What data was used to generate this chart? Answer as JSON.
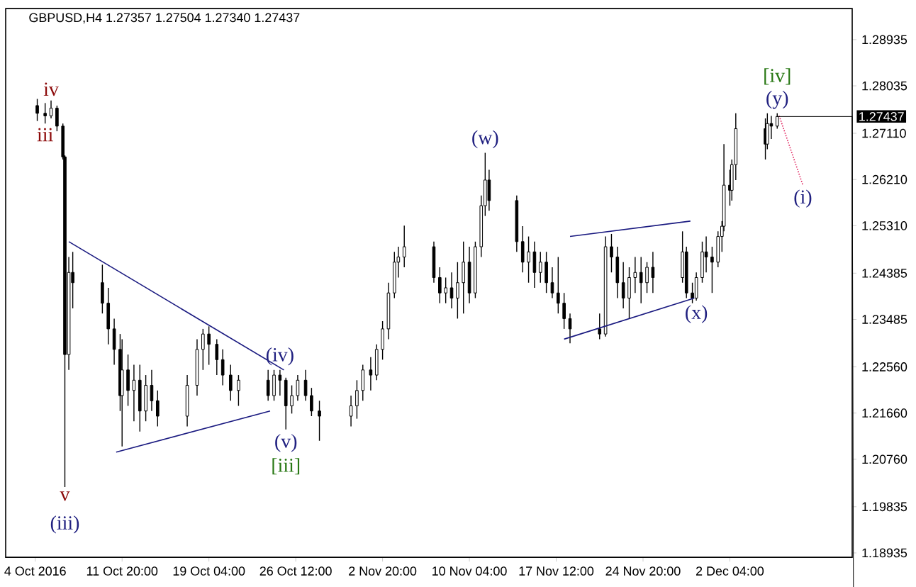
{
  "chart_data": {
    "type": "candlestick",
    "title": "GBPUSD,H4  1.27357 1.27504 1.27340 1.27437",
    "color": "#000000",
    "x": [
      "2016-10-04T16:00",
      "2016-10-05T08:00",
      "2016-10-05T20:00",
      "2016-10-06T08:00",
      "2016-10-06T20:00",
      "2016-10-07T00:00",
      "2016-10-07T08:00",
      "2016-10-07T16:00",
      "2016-10-10T04:00",
      "2016-10-10T16:00",
      "2016-10-11T04:00",
      "2016-10-11T16:00",
      "2016-10-11T20:00",
      "2016-10-12T08:00",
      "2016-10-12T20:00",
      "2016-10-13T08:00",
      "2016-10-13T20:00",
      "2016-10-14T08:00",
      "2016-10-14T20:00",
      "2016-10-17T08:00",
      "2016-10-18T04:00",
      "2016-10-18T16:00",
      "2016-10-19T04:00",
      "2016-10-19T20:00",
      "2016-10-20T08:00",
      "2016-10-21T00:00",
      "2016-10-21T16:00",
      "2016-10-24T04:00",
      "2016-10-24T16:00",
      "2016-10-25T04:00",
      "2016-10-25T16:00",
      "2016-10-26T04:00",
      "2016-10-26T16:00",
      "2016-10-27T08:00",
      "2016-10-27T20:00",
      "2016-10-28T12:00",
      "2016-10-31T04:00",
      "2016-10-31T16:00",
      "2016-11-01T04:00",
      "2016-11-01T20:00",
      "2016-11-02T08:00",
      "2016-11-02T20:00",
      "2016-11-03T08:00",
      "2016-11-03T20:00",
      "2016-11-04T04:00",
      "2016-11-04T16:00",
      "2016-11-07T04:00",
      "2016-11-07T16:00",
      "2016-11-08T04:00",
      "2016-11-08T16:00",
      "2016-11-09T04:00",
      "2016-11-09T16:00",
      "2016-11-10T04:00",
      "2016-11-10T16:00",
      "2016-11-11T04:00",
      "2016-11-11T12:00",
      "2016-11-11T20:00",
      "2016-11-14T04:00",
      "2016-11-14T16:00",
      "2016-11-15T04:00",
      "2016-11-15T16:00",
      "2016-11-16T04:00",
      "2016-11-16T16:00",
      "2016-11-17T04:00",
      "2016-11-17T16:00",
      "2016-11-18T04:00",
      "2016-11-18T16:00",
      "2016-11-21T04:00",
      "2016-11-21T16:00",
      "2016-11-22T04:00",
      "2016-11-22T16:00",
      "2016-11-23T04:00",
      "2016-11-23T16:00",
      "2016-11-24T04:00",
      "2016-11-24T16:00",
      "2016-11-25T04:00",
      "2016-11-25T16:00",
      "2016-11-28T04:00",
      "2016-11-28T12:00",
      "2016-11-29T00:00",
      "2016-11-29T08:00",
      "2016-11-29T20:00",
      "2016-11-30T04:00",
      "2016-11-30T16:00",
      "2016-12-01T04:00",
      "2016-12-01T12:00",
      "2016-12-01T16:00",
      "2016-12-02T04:00",
      "2016-12-02T08:00",
      "2016-12-02T16:00",
      "2016-12-05T04:00",
      "2016-12-05T08:00",
      "2016-12-05T16:00",
      "2016-12-06T04:00"
    ],
    "ohlc": [
      [
        1.2765,
        1.2778,
        1.2735,
        1.275
      ],
      [
        1.275,
        1.277,
        1.273,
        1.2745
      ],
      [
        1.2745,
        1.2775,
        1.274,
        1.276
      ],
      [
        1.276,
        1.2765,
        1.2715,
        1.2725
      ],
      [
        1.2725,
        1.273,
        1.266,
        1.2665
      ],
      [
        1.2665,
        1.2668,
        1.2022,
        1.228
      ],
      [
        1.228,
        1.247,
        1.225,
        1.244
      ],
      [
        1.244,
        1.248,
        1.237,
        1.242
      ],
      [
        1.242,
        1.2455,
        1.236,
        1.238
      ],
      [
        1.238,
        1.241,
        1.23,
        1.233
      ],
      [
        1.233,
        1.235,
        1.226,
        1.229
      ],
      [
        1.229,
        1.232,
        1.217,
        1.22
      ],
      [
        1.22,
        1.231,
        1.2101,
        1.225
      ],
      [
        1.225,
        1.228,
        1.218,
        1.221
      ],
      [
        1.221,
        1.226,
        1.215,
        1.223
      ],
      [
        1.223,
        1.226,
        1.213,
        1.217
      ],
      [
        1.217,
        1.224,
        1.215,
        1.222
      ],
      [
        1.222,
        1.225,
        1.217,
        1.219
      ],
      [
        1.219,
        1.221,
        1.214,
        1.216
      ],
      [
        1.216,
        1.224,
        1.214,
        1.222
      ],
      [
        1.222,
        1.231,
        1.22,
        1.229
      ],
      [
        1.229,
        1.233,
        1.225,
        1.232
      ],
      [
        1.232,
        1.2335,
        1.226,
        1.23
      ],
      [
        1.23,
        1.231,
        1.224,
        1.227
      ],
      [
        1.227,
        1.229,
        1.222,
        1.224
      ],
      [
        1.224,
        1.226,
        1.219,
        1.221
      ],
      [
        1.221,
        1.224,
        1.218,
        1.223
      ],
      [
        1.223,
        1.225,
        1.219,
        1.22
      ],
      [
        1.22,
        1.225,
        1.219,
        1.224
      ],
      [
        1.224,
        1.225,
        1.22,
        1.223
      ],
      [
        1.223,
        1.2235,
        1.2134,
        1.218
      ],
      [
        1.218,
        1.222,
        1.2165,
        1.22
      ],
      [
        1.22,
        1.224,
        1.219,
        1.223
      ],
      [
        1.223,
        1.225,
        1.219,
        1.22
      ],
      [
        1.22,
        1.2215,
        1.216,
        1.217
      ],
      [
        1.217,
        1.219,
        1.2112,
        1.216
      ],
      [
        1.216,
        1.22,
        1.214,
        1.218
      ],
      [
        1.218,
        1.223,
        1.2155,
        1.221
      ],
      [
        1.221,
        1.226,
        1.219,
        1.225
      ],
      [
        1.225,
        1.2275,
        1.221,
        1.224
      ],
      [
        1.224,
        1.23,
        1.223,
        1.229
      ],
      [
        1.229,
        1.2345,
        1.227,
        1.233
      ],
      [
        1.233,
        1.242,
        1.231,
        1.24
      ],
      [
        1.24,
        1.248,
        1.239,
        1.246
      ],
      [
        1.246,
        1.249,
        1.243,
        1.247
      ],
      [
        1.247,
        1.2531,
        1.245,
        1.249
      ],
      [
        1.249,
        1.25,
        1.242,
        1.243
      ],
      [
        1.243,
        1.245,
        1.238,
        1.24
      ],
      [
        1.24,
        1.243,
        1.238,
        1.241
      ],
      [
        1.241,
        1.244,
        1.237,
        1.239
      ],
      [
        1.239,
        1.246,
        1.235,
        1.242
      ],
      [
        1.242,
        1.25,
        1.236,
        1.246
      ],
      [
        1.246,
        1.249,
        1.238,
        1.24
      ],
      [
        1.24,
        1.25,
        1.239,
        1.249
      ],
      [
        1.249,
        1.259,
        1.247,
        1.257
      ],
      [
        1.257,
        1.2673,
        1.255,
        1.262
      ],
      [
        1.262,
        1.264,
        1.256,
        1.258
      ],
      [
        1.258,
        1.259,
        1.248,
        1.25
      ],
      [
        1.25,
        1.253,
        1.244,
        1.246
      ],
      [
        1.246,
        1.251,
        1.242,
        1.248
      ],
      [
        1.248,
        1.25,
        1.241,
        1.244
      ],
      [
        1.244,
        1.248,
        1.242,
        1.246
      ],
      [
        1.246,
        1.248,
        1.24,
        1.242
      ],
      [
        1.242,
        1.245,
        1.239,
        1.24
      ],
      [
        1.24,
        1.247,
        1.236,
        1.238
      ],
      [
        1.238,
        1.24,
        1.233,
        1.235
      ],
      [
        1.235,
        1.236,
        1.2302,
        1.233
      ],
      [
        1.233,
        1.236,
        1.231,
        1.232
      ],
      [
        1.232,
        1.251,
        1.2315,
        1.249
      ],
      [
        1.249,
        1.2515,
        1.244,
        1.247
      ],
      [
        1.247,
        1.249,
        1.239,
        1.242
      ],
      [
        1.242,
        1.246,
        1.237,
        1.239
      ],
      [
        1.239,
        1.245,
        1.235,
        1.243
      ],
      [
        1.243,
        1.247,
        1.24,
        1.244
      ],
      [
        1.244,
        1.247,
        1.238,
        1.242
      ],
      [
        1.242,
        1.246,
        1.24,
        1.245
      ],
      [
        1.245,
        1.248,
        1.24,
        1.243
      ],
      [
        1.243,
        1.252,
        1.242,
        1.248
      ],
      [
        1.248,
        1.249,
        1.239,
        1.24
      ],
      [
        1.24,
        1.242,
        1.238,
        1.239
      ],
      [
        1.239,
        1.244,
        1.2385,
        1.243
      ],
      [
        1.243,
        1.25,
        1.242,
        1.248
      ],
      [
        1.248,
        1.251,
        1.244,
        1.247
      ],
      [
        1.247,
        1.249,
        1.24,
        1.246
      ],
      [
        1.246,
        1.252,
        1.245,
        1.251
      ],
      [
        1.251,
        1.254,
        1.248,
        1.253
      ],
      [
        1.253,
        1.269,
        1.252,
        1.261
      ],
      [
        1.261,
        1.264,
        1.257,
        1.26
      ],
      [
        1.26,
        1.266,
        1.258,
        1.265
      ],
      [
        1.265,
        1.275,
        1.262,
        1.272
      ],
      [
        1.272,
        1.274,
        1.266,
        1.269
      ],
      [
        1.269,
        1.275,
        1.268,
        1.273
      ],
      [
        1.273,
        1.2745,
        1.27,
        1.2725
      ],
      [
        1.2725,
        1.275,
        1.272,
        1.27437
      ]
    ],
    "series": [
      {
        "type": "line",
        "color": "#1a1a80",
        "x": [
          "2016-10-07T08:00",
          "2016-10-25T12:00"
        ],
        "values": [
          1.25,
          1.225
        ]
      },
      {
        "type": "line",
        "color": "#1a1a80",
        "x": [
          "2016-10-11T08:00",
          "2016-10-24T08:00"
        ],
        "values": [
          1.209,
          1.217
        ]
      },
      {
        "type": "line",
        "color": "#1a1a80",
        "x": [
          "2016-11-18T16:00",
          "2016-11-28T20:00"
        ],
        "values": [
          1.251,
          1.254
        ]
      },
      {
        "type": "line",
        "color": "#1a1a80",
        "x": [
          "2016-11-18T04:00",
          "2016-11-29T04:00"
        ],
        "values": [
          1.231,
          1.239
        ]
      },
      {
        "type": "line",
        "color": "#e0245e",
        "line_style": "dotted",
        "x": [
          "2016-12-06T08:00",
          "2016-12-08T08:00"
        ],
        "values": [
          1.2745,
          1.261
        ]
      }
    ],
    "annotations": [
      {
        "text": "iv",
        "x": "2016-10-05T20:00",
        "y": 1.2775
      },
      {
        "text": "iii",
        "x": "2016-10-05T08:00",
        "y": 1.273
      },
      {
        "text": "v",
        "x": "2016-10-07T00:00",
        "y": 1.2022
      },
      {
        "text": "(iii)",
        "x": "2016-10-07T00:00",
        "y": 1.2022
      },
      {
        "text": "(iv)",
        "x": "2016-10-25T04:00",
        "y": 1.225
      },
      {
        "text": "(v)",
        "x": "2016-10-25T16:00",
        "y": 1.2134
      },
      {
        "text": "[iii]",
        "x": "2016-10-25T16:00",
        "y": 1.2134
      },
      {
        "text": "(w)",
        "x": "2016-11-11T12:00",
        "y": 1.2673
      },
      {
        "text": "(x)",
        "x": "2016-11-29T08:00",
        "y": 1.2385
      },
      {
        "text": "(y)",
        "x": "2016-12-06T04:00",
        "y": 1.275
      },
      {
        "text": "[iv]",
        "x": "2016-12-06T04:00",
        "y": 1.275
      },
      {
        "text": "(i)",
        "x": "2016-12-08T08:00",
        "y": 1.261
      }
    ],
    "ref_lines": [
      {
        "axis": "y",
        "value": 1.27437,
        "label": "1.27437"
      }
    ],
    "xlim": [
      "2016-10-02T00:00",
      "2016-12-12T12:00"
    ],
    "ylim": [
      1.1885,
      1.2954
    ],
    "xticks": [
      {
        "value": "2016-10-04T12:00",
        "label": "4 Oct 2016"
      },
      {
        "value": "2016-10-11T20:00",
        "label": "11 Oct 20:00"
      },
      {
        "value": "2016-10-19T04:00",
        "label": "19 Oct 04:00"
      },
      {
        "value": "2016-10-26T12:00",
        "label": "26 Oct 12:00"
      },
      {
        "value": "2016-11-02T20:00",
        "label": "2 Nov 20:00"
      },
      {
        "value": "2016-11-10T04:00",
        "label": "10 Nov 04:00"
      },
      {
        "value": "2016-11-17T12:00",
        "label": "17 Nov 12:00"
      },
      {
        "value": "2016-11-24T20:00",
        "label": "24 Nov 20:00"
      },
      {
        "value": "2016-12-02T04:00",
        "label": "2 Dec 04:00"
      }
    ],
    "yticks": [
      {
        "value": 1.18935,
        "label": "1.18935"
      },
      {
        "value": 1.19835,
        "label": "1.19835"
      },
      {
        "value": 1.2076,
        "label": "1.20760"
      },
      {
        "value": 1.2166,
        "label": "1.21660"
      },
      {
        "value": 1.2256,
        "label": "1.22560"
      },
      {
        "value": 1.23485,
        "label": "1.23485"
      },
      {
        "value": 1.24385,
        "label": "1.24385"
      },
      {
        "value": 1.2531,
        "label": "1.25310"
      },
      {
        "value": 1.2621,
        "label": "1.26210"
      },
      {
        "value": 1.2711,
        "label": "1.27110"
      },
      {
        "value": 1.28035,
        "label": "1.28035"
      },
      {
        "value": 1.28935,
        "label": "1.28935"
      }
    ],
    "grid": false
  }
}
